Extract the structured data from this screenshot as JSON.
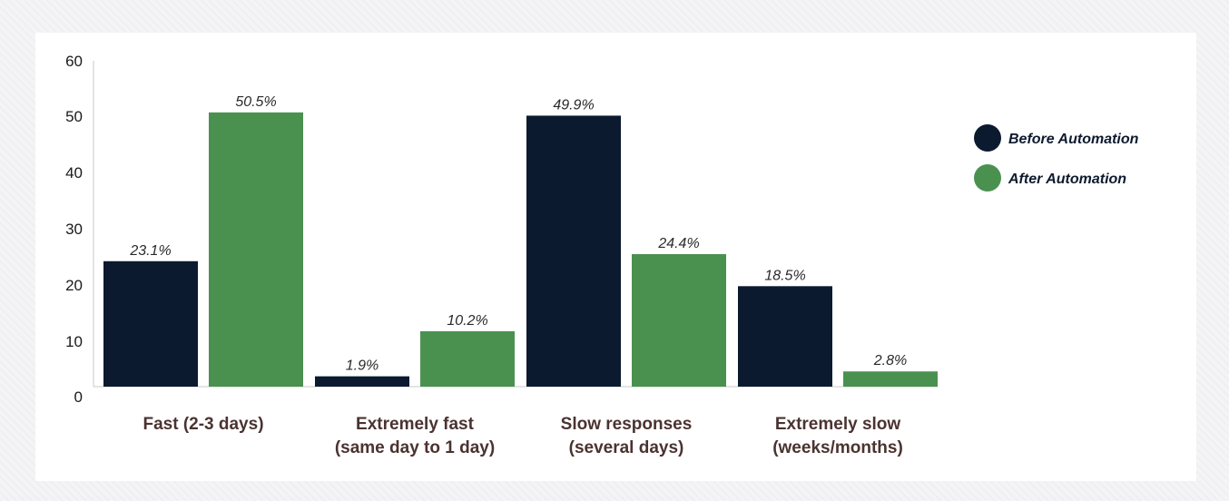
{
  "chart_data": {
    "type": "bar",
    "title": "",
    "xlabel": "",
    "ylabel": "",
    "ylim": [
      0,
      60
    ],
    "yticks": [
      0,
      10,
      20,
      30,
      40,
      50,
      60
    ],
    "grid": false,
    "legend_position": "right",
    "categories": [
      [
        "Fast (2-3 days)"
      ],
      [
        "Extremely fast",
        "(same day to 1 day)"
      ],
      [
        "Slow responses",
        "(several days)"
      ],
      [
        "Extremely slow",
        "(weeks/months)"
      ]
    ],
    "series": [
      {
        "name": "Before Automation",
        "color": "#0b1a2f",
        "values": [
          23.1,
          1.9,
          49.9,
          18.5
        ],
        "labels": [
          "23.1%",
          "1.9%",
          "49.9%",
          "18.5%"
        ]
      },
      {
        "name": "After Automation",
        "color": "#4a9150",
        "values": [
          50.5,
          10.2,
          24.4,
          2.8
        ],
        "labels": [
          "50.5%",
          "10.2%",
          "24.4%",
          "2.8%"
        ]
      }
    ]
  }
}
